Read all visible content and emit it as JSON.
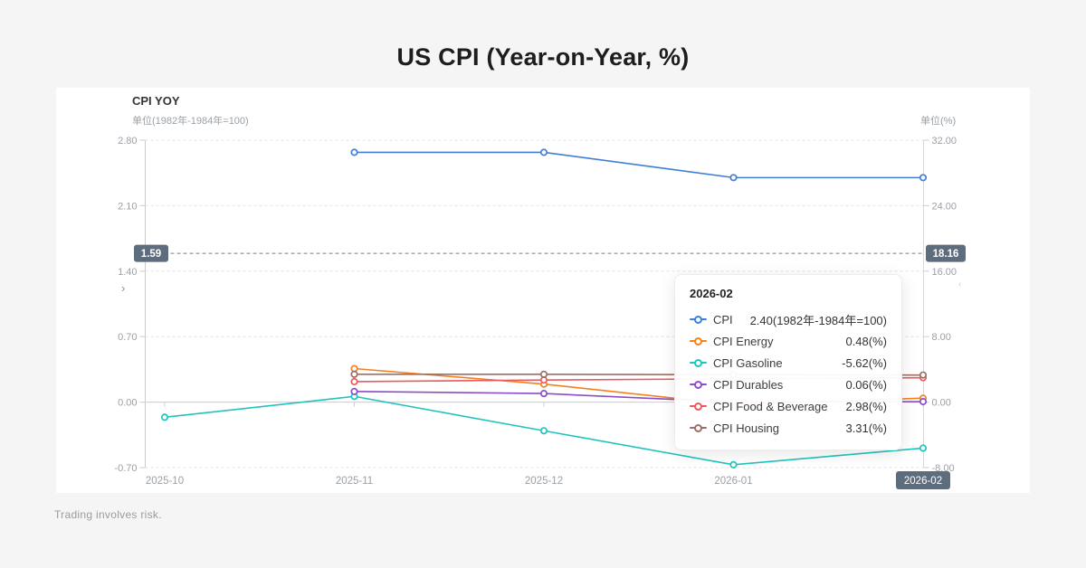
{
  "header": {
    "title": "US CPI (Year-on-Year, %)"
  },
  "panel": {
    "title": "CPI YOY",
    "subtitle_left": "单位(1982年-1984年=100)",
    "subtitle_right": "单位(%)",
    "collapse_left_icon": "›",
    "collapse_right_icon": "‹"
  },
  "footer": {
    "disclaimer": "Trading involves risk."
  },
  "tooltip": {
    "title": "2026-02",
    "rows": [
      {
        "series": "CPI",
        "value": "2.40(1982年-1984年=100)",
        "color": "#3f7ed8"
      },
      {
        "series": "CPI Energy",
        "value": "0.48(%)",
        "color": "#f5801f"
      },
      {
        "series": "CPI Gasoline",
        "value": "-5.62(%)",
        "color": "#20c4bd"
      },
      {
        "series": "CPI Durables",
        "value": "0.06(%)",
        "color": "#8b4dc8"
      },
      {
        "series": "CPI Food & Beverage",
        "value": "2.98(%)",
        "color": "#e95a5c"
      },
      {
        "series": "CPI Housing",
        "value": "3.31(%)",
        "color": "#9b6f66"
      }
    ]
  },
  "chart_data": {
    "type": "line",
    "title": "CPI YOY",
    "categories": [
      "2025-10",
      "2025-11",
      "2025-12",
      "2026-01",
      "2026-02"
    ],
    "highlighted_category": "2026-02",
    "left_axis": {
      "label": "单位(1982年-1984年=100)",
      "tick_labels": [
        "2.80",
        "2.10",
        "1.40",
        "0.70",
        "0.00",
        "-0.70"
      ],
      "range": [
        -0.7,
        2.8
      ]
    },
    "right_axis": {
      "label": "单位(%)",
      "tick_labels": [
        "32.00",
        "24.00",
        "16.00",
        "8.00",
        "0.00",
        "-8.00"
      ],
      "range": [
        -8,
        32
      ]
    },
    "grid": "dashed horizontal, axis line on zero",
    "legend_position": "tooltip only",
    "series": [
      {
        "name": "CPI",
        "axis": "left",
        "color": "#3f7ed8",
        "values": [
          null,
          2.67,
          2.67,
          2.4,
          2.4
        ]
      },
      {
        "name": "CPI Energy",
        "axis": "right",
        "color": "#f5801f",
        "values": [
          null,
          4.1,
          2.2,
          -0.3,
          0.48
        ]
      },
      {
        "name": "CPI Gasoline",
        "axis": "right",
        "color": "#20c4bd",
        "values": [
          -1.85,
          0.7,
          -3.5,
          -7.65,
          -5.62
        ]
      },
      {
        "name": "CPI Durables",
        "axis": "right",
        "color": "#8b4dc8",
        "values": [
          null,
          1.3,
          1.05,
          0.0,
          0.06
        ]
      },
      {
        "name": "CPI Food & Beverage",
        "axis": "right",
        "color": "#e95a5c",
        "values": [
          null,
          2.5,
          2.7,
          2.85,
          2.98
        ]
      },
      {
        "name": "CPI Housing",
        "axis": "right",
        "color": "#9b6f66",
        "values": [
          null,
          3.4,
          3.4,
          3.35,
          3.31
        ]
      }
    ],
    "marker_line": {
      "left_badge": "1.59",
      "right_badge": "18.16",
      "left_value": 1.59,
      "badge_color": "#5e6d7e"
    }
  }
}
